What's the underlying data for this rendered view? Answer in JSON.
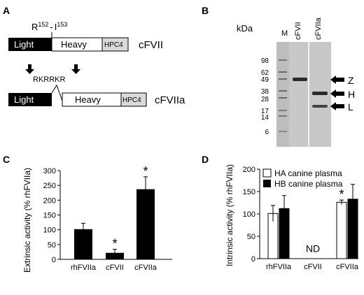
{
  "panels": {
    "A": {
      "label": "A",
      "cleavage_site": {
        "r": "R",
        "r_sup": "152",
        "dash": "-",
        "i": "I",
        "i_sup": "153"
      },
      "top_construct": {
        "light": "Light",
        "heavy": "Heavy",
        "tag": "HPC4",
        "name": "cFVII"
      },
      "insert_seq": "RKRRKR",
      "bottom_construct": {
        "light": "Light",
        "heavy": "Heavy",
        "tag": "HPC4",
        "name": "cFVIIa"
      }
    },
    "B": {
      "label": "B",
      "unit": "kDa",
      "lanes": [
        "M",
        "cFVII",
        "cFVIIa"
      ],
      "markers": [
        "98",
        "62",
        "49",
        "38",
        "28",
        "17",
        "14",
        "6"
      ],
      "bands": [
        "Z",
        "H",
        "L"
      ]
    },
    "C": {
      "label": "C",
      "ylabel": "Extrinsic activity (% rhFVIIa)",
      "yticks": [
        "0",
        "50",
        "100",
        "150",
        "200",
        "250",
        "300"
      ],
      "categories": [
        "rhFVIIa",
        "cFVII",
        "cFVIIa"
      ],
      "sig_marks": [
        "",
        "*",
        "*"
      ]
    },
    "D": {
      "label": "D",
      "ylabel": "Intrinsic activity (% rhFVIIa)",
      "yticks": [
        "0",
        "50",
        "100",
        "150",
        "200"
      ],
      "categories": [
        "rhFVIIa",
        "cFVII",
        "cFVIIa"
      ],
      "legend": [
        "HA canine plasma",
        "HB canine plasma"
      ],
      "nd_label": "ND",
      "sig_mark": "*"
    }
  },
  "chart_data": [
    {
      "type": "bar",
      "panel": "C",
      "categories": [
        "rhFVIIa",
        "cFVII",
        "cFVIIa"
      ],
      "values": [
        102,
        22,
        237
      ],
      "errors": [
        20,
        12,
        42
      ],
      "ylabel": "Extrinsic activity (% rhFVIIa)",
      "ylim": [
        0,
        300
      ],
      "color": "#000000"
    },
    {
      "type": "bar",
      "panel": "D",
      "categories": [
        "rhFVIIa",
        "cFVII",
        "cFVIIa"
      ],
      "series": [
        {
          "name": "HA canine plasma",
          "values": [
            101,
            null,
            126
          ],
          "errors": [
            18,
            null,
            5
          ],
          "color": "#ffffff"
        },
        {
          "name": "HB canine plasma",
          "values": [
            112,
            null,
            133
          ],
          "errors": [
            29,
            null,
            33
          ],
          "color": "#000000"
        }
      ],
      "ylabel": "Intrinsic activity (% rhFVIIa)",
      "ylim": [
        0,
        200
      ],
      "legend_position": "top"
    }
  ]
}
